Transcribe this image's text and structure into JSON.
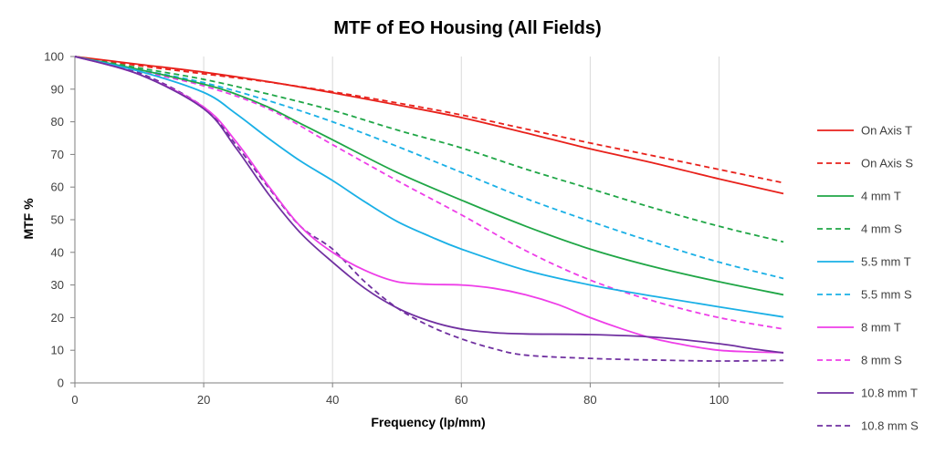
{
  "chart_data": {
    "type": "line",
    "title": "MTF of EO Housing (All Fields)",
    "xlabel": "Frequency (lp/mm)",
    "ylabel": "MTF %",
    "xlim": [
      0,
      110
    ],
    "ylim": [
      0,
      100
    ],
    "xticks": [
      0,
      20,
      40,
      60,
      80,
      100
    ],
    "yticks": [
      0,
      10,
      20,
      30,
      40,
      50,
      60,
      70,
      80,
      90,
      100
    ],
    "grid": "vertical gridlines at x ticks",
    "legend_position": "right",
    "series": [
      {
        "name": "On Axis T",
        "color": "#e8211b",
        "dash": false,
        "x": [
          0,
          10,
          20,
          30,
          40,
          50,
          60,
          70,
          80,
          90,
          100,
          110
        ],
        "y": [
          100,
          97.6,
          95.2,
          92.3,
          88.9,
          85.2,
          81.3,
          76.6,
          71.7,
          67.3,
          62.5,
          58
        ]
      },
      {
        "name": "On Axis S",
        "color": "#e8211b",
        "dash": true,
        "x": [
          0,
          10,
          20,
          30,
          40,
          50,
          60,
          70,
          80,
          90,
          100,
          110
        ],
        "y": [
          100,
          97.2,
          94.7,
          92.2,
          89.2,
          85.8,
          82.1,
          77.8,
          73.5,
          69.5,
          65.4,
          61.3
        ]
      },
      {
        "name": "4 mm T",
        "color": "#1fa646",
        "dash": false,
        "x": [
          0,
          10,
          20,
          25,
          30,
          35,
          40,
          50,
          60,
          70,
          80,
          90,
          100,
          110
        ],
        "y": [
          100,
          96,
          91.5,
          88.5,
          84.5,
          79.5,
          74.5,
          64.5,
          56,
          48,
          41,
          35.5,
          31,
          27
        ]
      },
      {
        "name": "4 mm S",
        "color": "#1fa646",
        "dash": true,
        "x": [
          0,
          10,
          20,
          30,
          40,
          50,
          60,
          70,
          80,
          90,
          100,
          110
        ],
        "y": [
          100,
          96.5,
          93,
          88.5,
          83.5,
          77.5,
          72,
          65.5,
          59.5,
          53.5,
          48,
          43.2
        ]
      },
      {
        "name": "5.5 mm T",
        "color": "#1ab0e6",
        "dash": false,
        "x": [
          0,
          10,
          20,
          25,
          30,
          35,
          40,
          45,
          50,
          55,
          60,
          70,
          80,
          90,
          100,
          110
        ],
        "y": [
          100,
          95.5,
          89,
          82.5,
          75,
          68,
          62,
          55.5,
          49.5,
          45,
          41,
          34.5,
          30,
          26.5,
          23.3,
          20.2
        ]
      },
      {
        "name": "5.5 mm S",
        "color": "#1ab0e6",
        "dash": true,
        "x": [
          0,
          10,
          20,
          30,
          40,
          50,
          60,
          70,
          80,
          90,
          100,
          110
        ],
        "y": [
          100,
          96,
          92,
          86.5,
          80,
          72.5,
          64.5,
          56.5,
          49.5,
          43,
          37,
          32
        ]
      },
      {
        "name": "8 mm T",
        "color": "#ee3ee8",
        "dash": false,
        "x": [
          0,
          10,
          20,
          25,
          30,
          35,
          40,
          45,
          50,
          55,
          60,
          65,
          70,
          75,
          80,
          85,
          90,
          95,
          100,
          105,
          110
        ],
        "y": [
          100,
          94.5,
          84.5,
          74,
          60.5,
          48,
          40,
          34.5,
          31,
          30.2,
          30,
          29,
          27,
          24,
          20,
          16.5,
          13.5,
          11.5,
          10,
          9.5,
          9.3
        ]
      },
      {
        "name": "8 mm S",
        "color": "#ee3ee8",
        "dash": true,
        "x": [
          0,
          10,
          20,
          30,
          40,
          50,
          60,
          70,
          80,
          90,
          100,
          110
        ],
        "y": [
          100,
          95.5,
          91,
          84,
          73,
          62,
          51.5,
          40.5,
          31.5,
          25,
          20,
          16.5
        ]
      },
      {
        "name": "10.8 mm T",
        "color": "#7030a0",
        "dash": false,
        "x": [
          0,
          10,
          20,
          25,
          30,
          35,
          40,
          45,
          50,
          55,
          60,
          65,
          70,
          80,
          90,
          100,
          105,
          110
        ],
        "y": [
          100,
          94.5,
          84,
          72,
          58,
          46,
          37,
          29,
          23,
          19,
          16.5,
          15.4,
          15,
          14.8,
          14,
          12,
          10.5,
          9.2
        ]
      },
      {
        "name": "10.8 mm S",
        "color": "#7030a0",
        "dash": true,
        "x": [
          0,
          10,
          20,
          25,
          30,
          35,
          40,
          45,
          50,
          55,
          60,
          65,
          70,
          80,
          90,
          100,
          110
        ],
        "y": [
          100,
          95,
          84.5,
          73,
          60,
          48,
          41,
          31,
          23,
          17.5,
          13.5,
          10.5,
          8.5,
          7.5,
          7,
          6.7,
          6.9
        ]
      }
    ]
  }
}
